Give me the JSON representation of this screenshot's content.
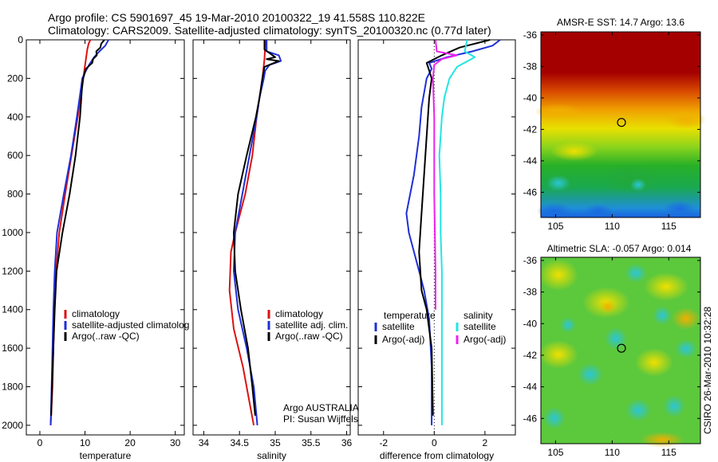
{
  "header": {
    "line1": "Argo profile: CS 5901697_45 19-Mar-2010 20100322_19 41.558S 110.822E",
    "line2": "Climatology: CARS2009. Satellite-adjusted climatology: synTS_20100320.nc (0.77d later)"
  },
  "credit": "CSIRO 26-Mar-2010 10:32:28",
  "colors": {
    "red": "#dd1111",
    "blue": "#1f2fd6",
    "black": "#000000",
    "cyan": "#22e5e5",
    "magenta": "#ee22ee"
  },
  "chart_data": [
    {
      "id": "temperature-panel",
      "type": "line",
      "xlabel": "temperature",
      "ylabel": "",
      "xlim": [
        -3,
        32
      ],
      "ylim": [
        0,
        2050
      ],
      "xticks": [
        0,
        10,
        20,
        30
      ],
      "yticks": [
        0,
        200,
        400,
        600,
        800,
        1000,
        1200,
        1400,
        1600,
        1800,
        2000
      ],
      "y_reversed": true,
      "legend": {
        "position": "lower-right",
        "entries": [
          {
            "label": "climatology",
            "color": "red"
          },
          {
            "label": "satellite-adjusted climatolog",
            "color": "blue"
          },
          {
            "label": "Argo(..raw -QC)",
            "color": "black"
          }
        ]
      },
      "series": [
        {
          "color": "red",
          "x": [
            11.2,
            10.8,
            10.5,
            10.2,
            9.9,
            9.6,
            9.3,
            8.4,
            7.0,
            5.6,
            4.3,
            3.6,
            3.2,
            3.0,
            2.8,
            2.6,
            2.5,
            2.4
          ],
          "y": [
            0,
            20,
            50,
            100,
            150,
            200,
            250,
            400,
            600,
            800,
            1000,
            1200,
            1400,
            1600,
            1800,
            1900,
            1950,
            2000
          ]
        },
        {
          "color": "blue",
          "x": [
            15.2,
            14.5,
            13.2,
            12.0,
            10.9,
            10.0,
            9.4,
            9.1,
            8.2,
            6.9,
            5.3,
            3.8,
            3.3,
            3.0,
            2.8,
            2.6,
            2.5,
            2.4
          ],
          "y": [
            0,
            30,
            60,
            90,
            130,
            170,
            200,
            250,
            400,
            600,
            800,
            1000,
            1200,
            1400,
            1600,
            1800,
            1900,
            2000
          ]
        },
        {
          "color": "black",
          "x": [
            14.3,
            13.6,
            13.4,
            12.5,
            12.6,
            11.8,
            11.6,
            10.2,
            9.6,
            9.3,
            8.9,
            7.9,
            6.6,
            5.0,
            3.7,
            3.3,
            3.0,
            2.7,
            2.5
          ],
          "y": [
            0,
            20,
            40,
            60,
            80,
            100,
            120,
            150,
            200,
            260,
            400,
            600,
            800,
            1000,
            1200,
            1400,
            1600,
            1800,
            1950
          ]
        }
      ]
    },
    {
      "id": "salinity-panel",
      "type": "line",
      "xlabel": "salinity",
      "ylabel": "",
      "xlim": [
        33.85,
        36.05
      ],
      "ylim": [
        0,
        2050
      ],
      "xticks": [
        34,
        34.5,
        35,
        35.5,
        36
      ],
      "y_reversed": true,
      "legend": {
        "position": "lower-right",
        "entries": [
          {
            "label": "climatology",
            "color": "red"
          },
          {
            "label": "satellite adj. clim.",
            "color": "blue"
          },
          {
            "label": "Argo(..raw -QC)",
            "color": "black"
          }
        ]
      },
      "annotation": [
        "Argo AUSTRALIA",
        "PI: Susan Wijffels"
      ],
      "series": [
        {
          "color": "red",
          "x": [
            34.87,
            34.86,
            34.85,
            34.82,
            34.78,
            34.74,
            34.68,
            34.58,
            34.44,
            34.38,
            34.36,
            34.42,
            34.55,
            34.65,
            34.7
          ],
          "y": [
            0,
            30,
            100,
            200,
            300,
            400,
            600,
            800,
            1000,
            1100,
            1300,
            1500,
            1700,
            1900,
            2000
          ]
        },
        {
          "color": "blue",
          "x": [
            34.88,
            34.88,
            35.05,
            35.08,
            34.92,
            34.86,
            34.84,
            34.78,
            34.74,
            34.64,
            34.54,
            34.44,
            34.42,
            34.48,
            34.6,
            34.7,
            34.75
          ],
          "y": [
            0,
            60,
            80,
            110,
            130,
            160,
            200,
            300,
            400,
            600,
            800,
            1000,
            1200,
            1400,
            1600,
            1800,
            2000
          ]
        },
        {
          "color": "black",
          "x": [
            34.85,
            34.85,
            35.0,
            34.88,
            35.05,
            34.85,
            34.82,
            34.78,
            34.73,
            34.6,
            34.48,
            34.42,
            34.44,
            34.52,
            34.62,
            34.68,
            34.72
          ],
          "y": [
            0,
            50,
            90,
            100,
            110,
            140,
            200,
            300,
            400,
            600,
            800,
            1000,
            1200,
            1400,
            1600,
            1800,
            1950
          ]
        }
      ]
    },
    {
      "id": "difference-panel",
      "type": "line",
      "xlabel": "difference from climatology",
      "ylabel": "",
      "xlim": [
        -3,
        3.2
      ],
      "ylim": [
        0,
        2050
      ],
      "xticks": [
        -2,
        0,
        2
      ],
      "y_reversed": true,
      "zero_line": "dotted",
      "legend": {
        "position": "lower-center",
        "entries": [
          {
            "group": "temperature",
            "label": "satellite",
            "color": "blue"
          },
          {
            "group": "temperature",
            "label": "Argo(-adj)",
            "color": "black"
          },
          {
            "group": "salinity",
            "label": "satellite",
            "color": "cyan"
          },
          {
            "group": "salinity",
            "label": "Argo(-adj)",
            "color": "magenta"
          }
        ]
      },
      "series": [
        {
          "color": "blue",
          "x": [
            2.6,
            2.3,
            1.5,
            0.5,
            -0.2,
            -0.1,
            -0.3,
            -0.5,
            -0.6,
            -0.8,
            -1.1,
            -1.0,
            -0.8,
            -0.6,
            -0.4,
            -0.2,
            -0.1,
            -0.1
          ],
          "y": [
            0,
            30,
            60,
            90,
            120,
            150,
            200,
            350,
            500,
            700,
            900,
            1000,
            1100,
            1200,
            1300,
            1450,
            1700,
            2000
          ]
        },
        {
          "color": "black",
          "x": [
            2.2,
            1.0,
            0.3,
            -0.3,
            -0.2,
            -0.1,
            -0.2,
            -0.3,
            -0.4,
            -0.5,
            -0.6,
            -0.5,
            -0.3,
            -0.1,
            -0.05
          ],
          "y": [
            0,
            40,
            80,
            120,
            160,
            200,
            300,
            500,
            700,
            900,
            1100,
            1300,
            1400,
            1600,
            1950
          ]
        },
        {
          "color": "cyan",
          "x": [
            1.3,
            1.2,
            1.6,
            0.9,
            0.6,
            0.4,
            0.3,
            0.2,
            0.25,
            0.25,
            0.3,
            0.3,
            0.3
          ],
          "y": [
            0,
            60,
            90,
            140,
            200,
            300,
            400,
            600,
            800,
            1000,
            1200,
            1600,
            2000
          ]
        },
        {
          "color": "magenta",
          "x": [
            0.05,
            0.1,
            0.9,
            0.3,
            0.0,
            -0.05,
            0.0,
            0.0,
            0.05,
            0.05
          ],
          "y": [
            0,
            60,
            80,
            100,
            130,
            200,
            400,
            800,
            1200,
            1400
          ]
        }
      ]
    }
  ],
  "maps": [
    {
      "id": "sst-map",
      "title": "AMSR-E SST: 14.7 Argo: 13.6",
      "xlim": [
        103.7,
        117.8
      ],
      "ylim": [
        -47.6,
        -35.8
      ],
      "xticks": [
        105,
        110,
        115
      ],
      "xtick_labels": [
        "105",
        "110",
        "115"
      ],
      "yticks": [
        -36,
        -38,
        -40,
        -42,
        -44,
        -46
      ],
      "ytick_labels": [
        "-36",
        "-38",
        "-40",
        "-42",
        "-44",
        "-46"
      ],
      "marker": {
        "lon": 110.822,
        "lat": -41.558
      }
    },
    {
      "id": "sla-map",
      "title": "Altimetric SLA: -0.057 Argo: 0.014",
      "xlim": [
        103.7,
        117.8
      ],
      "ylim": [
        -47.6,
        -35.8
      ],
      "xticks": [
        105,
        110,
        115
      ],
      "xtick_labels": [
        "105",
        "110",
        "115"
      ],
      "yticks": [
        -36,
        -38,
        -40,
        -42,
        -44,
        -46
      ],
      "ytick_labels": [
        "-36",
        "-38",
        "-40",
        "-42",
        "-44",
        "-46"
      ],
      "marker": {
        "lon": 110.822,
        "lat": -41.558
      }
    }
  ]
}
